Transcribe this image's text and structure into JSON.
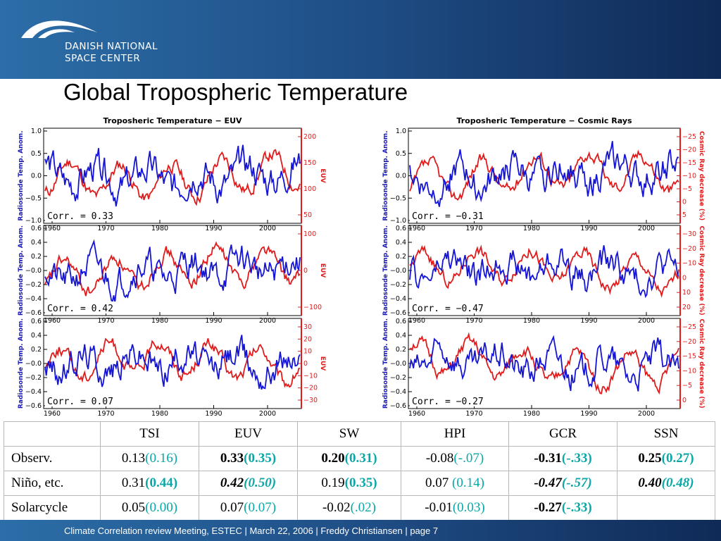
{
  "header": {
    "org_line1": "DANISH NATIONAL",
    "org_line2": "SPACE CENTER"
  },
  "page_title": "Global Tropospheric Temperature",
  "colors": {
    "observed": "#1515d6",
    "proxy": "#e01b1b",
    "accent_cyan": "#0ba7a7",
    "banner": "#1f4e86"
  },
  "figure_left": {
    "title": "Troposheric Temperature − EUV",
    "y_left_label": "Radiosonde Temp. Anom.",
    "y_right_label": "EUV",
    "x_ticks": [
      "1960",
      "1970",
      "1980",
      "1990",
      "2000"
    ],
    "panels": [
      {
        "corr": "Corr. = 0.33",
        "left_ticks": [
          "1.0",
          "0.5",
          "0.0",
          "−0.5",
          "−1.0"
        ],
        "right_ticks": [
          "200",
          "150",
          "100",
          "50"
        ]
      },
      {
        "corr": "Corr. = 0.42",
        "left_ticks": [
          "0.6",
          "0.4",
          "0.2",
          "−0.0",
          "−0.2",
          "−0.4",
          "−0.6"
        ],
        "right_ticks": [
          "100",
          "0",
          "−100"
        ]
      },
      {
        "corr": "Corr. = 0.07",
        "left_ticks": [
          "0.6",
          "0.4",
          "0.2",
          "−0.0",
          "−0.2",
          "−0.4",
          "−0.6"
        ],
        "right_ticks": [
          "30",
          "20",
          "10",
          "0",
          "−10",
          "−20",
          "−30"
        ]
      }
    ]
  },
  "figure_right": {
    "title": "Troposheric Temperature − Cosmic Rays",
    "y_left_label": "Radiosonde Temp. Anom.",
    "y_right_label": "Cosmic Ray decrease (%)",
    "x_ticks": [
      "1960",
      "1970",
      "1980",
      "1990",
      "2000"
    ],
    "panels": [
      {
        "corr": "Corr. = −0.31",
        "left_ticks": [
          "1.0",
          "0.5",
          "0.0",
          "−0.5",
          "−1.0"
        ],
        "right_ticks": [
          "−25",
          "−20",
          "−15",
          "−10",
          "−5",
          "0",
          "5"
        ]
      },
      {
        "corr": "Corr. = −0.47",
        "left_ticks": [
          "0.6",
          "0.4",
          "0.2",
          "−0.0",
          "−0.2",
          "−0.4",
          "−0.6"
        ],
        "right_ticks": [
          "−30",
          "−20",
          "−10",
          "0",
          "10",
          "20"
        ]
      },
      {
        "corr": "Corr. = −0.27",
        "left_ticks": [
          "0.6",
          "0.4",
          "0.2",
          "−0.0",
          "−0.2",
          "−0.4",
          "−0.6"
        ],
        "right_ticks": [
          "−25",
          "−20",
          "−15",
          "−10",
          "−5",
          "0"
        ]
      }
    ]
  },
  "table": {
    "headers": [
      "",
      "TSI",
      "EUV",
      "SW",
      "HPI",
      "GCR",
      "SSN"
    ],
    "rows": [
      {
        "label": "Observ.",
        "cells": [
          {
            "main": "0.13",
            "paren": "(0.16)",
            "style": ""
          },
          {
            "main": "0.33",
            "paren": "(0.35)",
            "style": "b"
          },
          {
            "main": "0.20",
            "paren": "(0.31)",
            "style": "b"
          },
          {
            "main": "-0.08",
            "paren": "(-.07)",
            "style": ""
          },
          {
            "main": "-0.31",
            "paren": "(-.33)",
            "style": "b"
          },
          {
            "main": "0.25",
            "paren": "(0.27)",
            "style": "b"
          }
        ]
      },
      {
        "label": "Niño, etc.",
        "cells": [
          {
            "main": "0.31",
            "paren": "(0.44)",
            "style": "bp"
          },
          {
            "main": "0.42",
            "paren": "(0.50)",
            "style": "bi"
          },
          {
            "main": "0.19",
            "paren": "(0.35)",
            "style": "bp"
          },
          {
            "main": "0.07",
            "paren": " (0.14)",
            "style": ""
          },
          {
            "main": "-0.47",
            "paren": "(-.57)",
            "style": "bi"
          },
          {
            "main": "0.40",
            "paren": "(0.48)",
            "style": "bi"
          }
        ]
      },
      {
        "label": "Solarcycle",
        "cells": [
          {
            "main": "0.05",
            "paren": "(0.00)",
            "style": ""
          },
          {
            "main": "0.07",
            "paren": "(0.07)",
            "style": ""
          },
          {
            "main": "-0.02",
            "paren": "(.02)",
            "style": ""
          },
          {
            "main": "-0.01",
            "paren": "(0.03)",
            "style": ""
          },
          {
            "main": "-0.27",
            "paren": "(-.33)",
            "style": "b"
          },
          {
            "main": "",
            "paren": "",
            "style": ""
          }
        ]
      }
    ]
  },
  "footer": {
    "text": "Climate Correlation review Meeting, ESTEC | March 22, 2006 | Freddy Christiansen | page 7"
  }
}
